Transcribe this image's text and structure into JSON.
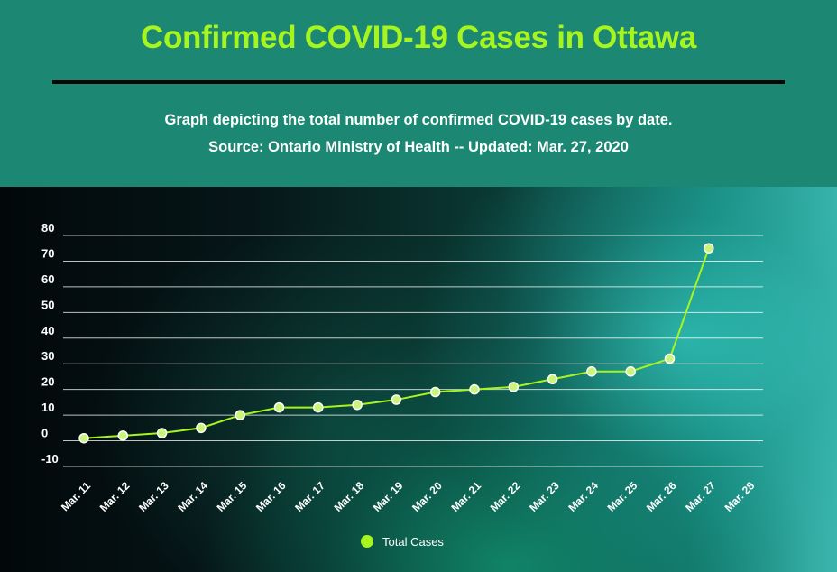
{
  "header": {
    "title": "Confirmed COVID-19 Cases in Ottawa",
    "subtitle_line1": "Graph depicting the total number of confirmed COVID-19 cases by date.",
    "subtitle_line2": "Source:  Ontario Ministry of Health -- Updated: Mar. 27, 2020"
  },
  "colors": {
    "title": "#a6f51f",
    "header_bg": "#1c8773",
    "line": "#a6f51f",
    "point_fill": "#c9f57a",
    "grid": "#ffffff"
  },
  "chart_data": {
    "type": "line",
    "categories": [
      "Mar. 11",
      "Mar. 12",
      "Mar. 13",
      "Mar. 14",
      "Mar. 15",
      "Mar. 16",
      "Mar. 17",
      "Mar. 18",
      "Mar. 19",
      "Mar. 20",
      "Mar. 21",
      "Mar. 22",
      "Mar. 23",
      "Mar. 24",
      "Mar. 25",
      "Mar. 26",
      "Mar. 27",
      "Mar. 28"
    ],
    "series": [
      {
        "name": "Total Cases",
        "values": [
          1,
          2,
          3,
          5,
          10,
          13,
          13,
          14,
          16,
          19,
          20,
          21,
          24,
          27,
          27,
          32,
          75,
          null
        ]
      }
    ],
    "yticks": [
      -10,
      0,
      10,
      20,
      30,
      40,
      50,
      60,
      70,
      80
    ],
    "ylim": [
      -10,
      80
    ],
    "grid": true,
    "legend_position": "bottom-center"
  }
}
